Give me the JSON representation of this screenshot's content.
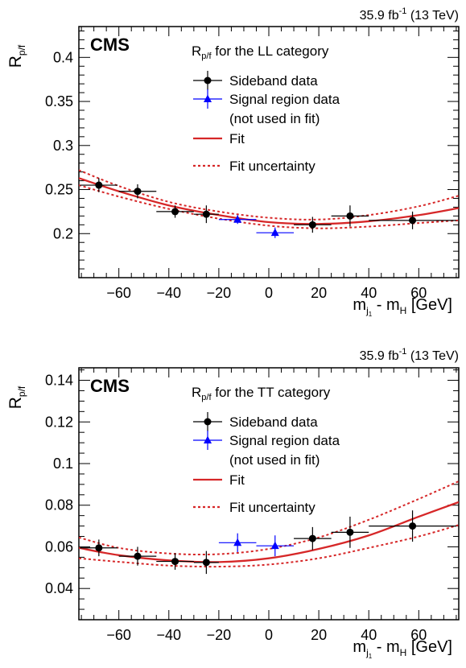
{
  "chart_data": [
    {
      "type": "scatter",
      "cms_label": "CMS",
      "lumi_label": "35.9 fb",
      "lumi_sup": "-1",
      "lumi_energy": " (13 TeV)",
      "ylabel_main": "R",
      "ylabel_sub": "p/f",
      "xlabel_main": "m",
      "xlabel_sub": "j",
      "xlabel_subsub": "1",
      "xlabel_rest": " - m",
      "xlabel_sub2": "H",
      "xlabel_unit": " [GeV]",
      "xlim": [
        -76,
        76
      ],
      "ylim": [
        0.15,
        0.435
      ],
      "xticks": [
        -60,
        -40,
        -20,
        0,
        20,
        40,
        60
      ],
      "xtick_labels": [
        "−60",
        "−40",
        "−20",
        "0",
        "20",
        "40",
        "60"
      ],
      "yticks": [
        0.2,
        0.25,
        0.3,
        0.35,
        0.4
      ],
      "ytick_labels": [
        "0.2",
        "0.25",
        "0.3",
        "0.35",
        "0.4"
      ],
      "legend_title_main": "R",
      "legend_title_sub": "p/f",
      "legend_title_rest": " for the LL category",
      "legend": [
        {
          "label": "Sideband data",
          "kind": "circle",
          "color": "#000000"
        },
        {
          "label": "Signal region data",
          "label2": "(not used in fit)",
          "kind": "triangle",
          "color": "#0000ff"
        },
        {
          "label": "Fit",
          "kind": "line",
          "color": "#d62728"
        },
        {
          "label": "Fit uncertainty",
          "kind": "dotted",
          "color": "#d62728"
        }
      ],
      "sideband": {
        "x": [
          -68,
          -52.5,
          -37.5,
          -25,
          17.5,
          32.5,
          57.5
        ],
        "y": [
          0.255,
          0.248,
          0.225,
          0.222,
          0.21,
          0.22,
          0.215
        ],
        "xerr": [
          7.5,
          7.5,
          7.5,
          5,
          7.5,
          7.5,
          17.5
        ],
        "yerr": [
          0.008,
          0.008,
          0.007,
          0.01,
          0.009,
          0.012,
          0.01
        ]
      },
      "signal": {
        "x": [
          -12.5,
          2.5
        ],
        "y": [
          0.216,
          0.201
        ],
        "xerr": [
          7.5,
          7.5
        ],
        "yerr": [
          0.005,
          0.006
        ]
      },
      "fit": {
        "x": [
          -76,
          -60,
          -40,
          -20,
          0,
          20,
          40,
          60,
          76
        ],
        "y": [
          0.263,
          0.248,
          0.232,
          0.221,
          0.213,
          0.211,
          0.214,
          0.221,
          0.229
        ]
      },
      "fit_upper": {
        "x": [
          -76,
          -60,
          -40,
          -20,
          0,
          20,
          40,
          60,
          76
        ],
        "y": [
          0.272,
          0.254,
          0.236,
          0.225,
          0.218,
          0.216,
          0.221,
          0.231,
          0.243
        ]
      },
      "fit_lower": {
        "x": [
          -76,
          -60,
          -40,
          -20,
          0,
          20,
          40,
          60,
          76
        ],
        "y": [
          0.255,
          0.242,
          0.228,
          0.217,
          0.209,
          0.206,
          0.208,
          0.212,
          0.215
        ]
      }
    },
    {
      "type": "scatter",
      "cms_label": "CMS",
      "lumi_label": "35.9 fb",
      "lumi_sup": "-1",
      "lumi_energy": " (13 TeV)",
      "ylabel_main": "R",
      "ylabel_sub": "p/f",
      "xlabel_main": "m",
      "xlabel_sub": "j",
      "xlabel_subsub": "1",
      "xlabel_rest": " - m",
      "xlabel_sub2": "H",
      "xlabel_unit": " [GeV]",
      "xlim": [
        -76,
        76
      ],
      "ylim": [
        0.025,
        0.146
      ],
      "xticks": [
        -60,
        -40,
        -20,
        0,
        20,
        40,
        60
      ],
      "xtick_labels": [
        "−60",
        "−40",
        "−20",
        "0",
        "20",
        "40",
        "60"
      ],
      "yticks": [
        0.04,
        0.06,
        0.08,
        0.1,
        0.12,
        0.14
      ],
      "ytick_labels": [
        "0.04",
        "0.06",
        "0.08",
        "0.1",
        "0.12",
        "0.14"
      ],
      "legend_title_main": "R",
      "legend_title_sub": "p/f",
      "legend_title_rest": " for the TT category",
      "legend": [
        {
          "label": "Sideband data",
          "kind": "circle",
          "color": "#000000"
        },
        {
          "label": "Signal region data",
          "label2": "(not used in fit)",
          "kind": "triangle",
          "color": "#0000ff"
        },
        {
          "label": "Fit",
          "kind": "line",
          "color": "#d62728"
        },
        {
          "label": "Fit uncertainty",
          "kind": "dotted",
          "color": "#d62728"
        }
      ],
      "sideband": {
        "x": [
          -68,
          -52.5,
          -37.5,
          -25,
          17.5,
          32.5,
          57.5
        ],
        "y": [
          0.0595,
          0.0555,
          0.053,
          0.0525,
          0.064,
          0.067,
          0.07
        ],
        "xerr": [
          7.5,
          7.5,
          7.5,
          5,
          7.5,
          7.5,
          17.5
        ],
        "yerr": [
          0.004,
          0.0045,
          0.004,
          0.0055,
          0.0055,
          0.0075,
          0.0075
        ]
      },
      "signal": {
        "x": [
          -12.5,
          2.5
        ],
        "y": [
          0.062,
          0.0605
        ],
        "xerr": [
          7.5,
          7.5
        ],
        "yerr": [
          0.0045,
          0.005
        ]
      },
      "fit": {
        "x": [
          -76,
          -60,
          -40,
          -20,
          0,
          20,
          40,
          60,
          76
        ],
        "y": [
          0.0595,
          0.056,
          0.0535,
          0.0527,
          0.0545,
          0.059,
          0.0655,
          0.0745,
          0.0815
        ]
      },
      "fit_upper": {
        "x": [
          -76,
          -60,
          -40,
          -20,
          0,
          20,
          40,
          60,
          76
        ],
        "y": [
          0.0645,
          0.0595,
          0.0568,
          0.0565,
          0.059,
          0.0645,
          0.073,
          0.083,
          0.0915
        ]
      },
      "fit_lower": {
        "x": [
          -76,
          -60,
          -40,
          -20,
          0,
          20,
          40,
          60,
          76
        ],
        "y": [
          0.0545,
          0.0528,
          0.051,
          0.0505,
          0.0515,
          0.0545,
          0.0595,
          0.065,
          0.0705
        ]
      }
    }
  ]
}
